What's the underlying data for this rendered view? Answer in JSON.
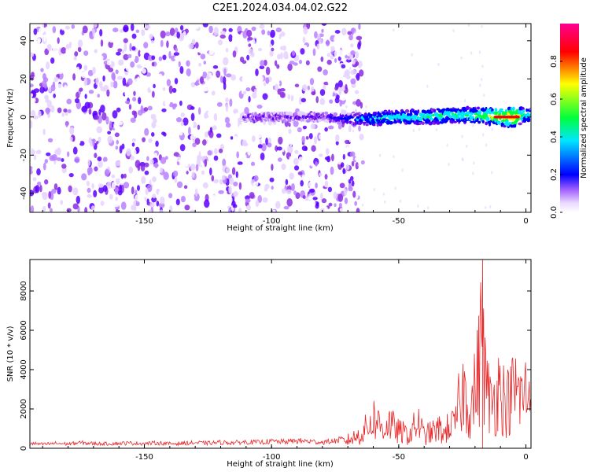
{
  "page_title": "C2E1.2024.034.04.02.G22",
  "colors": {
    "snr_line": "#e8282a",
    "colormap": [
      "#ffffff",
      "#e6d2ff",
      "#b980ff",
      "#8a2be2",
      "#5b00ff",
      "#0000ff",
      "#00e6ff",
      "#00ff3c",
      "#ffff00",
      "#ff0000",
      "#ff00aa"
    ]
  },
  "chart_data": [
    {
      "type": "heatmap",
      "xlabel": "Height of straight line (km)",
      "ylabel": "Frequency (Hz)",
      "xlim": [
        -195,
        2
      ],
      "ylim": [
        -50,
        49
      ],
      "xticks": [
        -150,
        -100,
        -50,
        0
      ],
      "xtick_labels": [
        "-150",
        "-100",
        "-50",
        "0"
      ],
      "yticks": [
        -40,
        -20,
        0,
        20,
        40
      ],
      "ytick_labels": [
        "-40",
        "-20",
        "0",
        "20",
        "40"
      ],
      "colorbar": {
        "label": "Normalized spectral amplitude",
        "range": [
          0,
          1
        ],
        "ticks": [
          0,
          0.2,
          0.4,
          0.6,
          0.8
        ],
        "tick_labels": [
          "0.0",
          "0.2",
          "0.4",
          "0.6",
          "0.8"
        ]
      },
      "description_of_features": {
        "noise_region_x": [
          -195,
          -72
        ],
        "noise_amplitude_range": [
          0.0,
          0.2
        ],
        "signal_start_x": -111,
        "signal_center_frequency": 0,
        "strong_signal_start_x": -65,
        "peak_amplitude": 1.0,
        "peak_x_range": [
          -12,
          -3
        ]
      },
      "series": [
        {
          "name": "",
          "signal_ridge": {
            "x": [
              -111,
              -100,
              -90,
              -80,
              -70,
              -60,
              -50,
              -40,
              -30,
              -20,
              -10,
              -5,
              0
            ],
            "frequency": [
              0,
              0,
              0,
              0,
              -1,
              -1,
              0,
              0,
              1,
              1,
              0,
              0,
              1
            ],
            "amplitude": [
              0.15,
              0.15,
              0.15,
              0.18,
              0.3,
              0.45,
              0.5,
              0.55,
              0.55,
              0.6,
              0.8,
              0.95,
              0.5
            ]
          }
        }
      ]
    },
    {
      "type": "line",
      "xlabel": "Height of straight line (km)",
      "ylabel": "SNR (10 * v/v)",
      "xlim": [
        -195,
        2
      ],
      "ylim": [
        0,
        9600
      ],
      "xticks": [
        -150,
        -100,
        -50,
        0
      ],
      "xtick_labels": [
        "-150",
        "-100",
        "-50",
        "0"
      ],
      "yticks": [
        0,
        2000,
        4000,
        6000,
        8000
      ],
      "ytick_labels": [
        "0",
        "2000",
        "4000",
        "6000",
        "8000"
      ],
      "series": [
        {
          "name": "",
          "x": [
            -195,
            -190,
            -185,
            -180,
            -175,
            -170,
            -165,
            -160,
            -155,
            -150,
            -145,
            -140,
            -135,
            -130,
            -125,
            -120,
            -115,
            -110,
            -105,
            -100,
            -95,
            -90,
            -85,
            -80,
            -75,
            -72,
            -70,
            -67,
            -65,
            -62,
            -60,
            -58,
            -56,
            -54,
            -52,
            -50,
            -48,
            -46,
            -44,
            -42,
            -40,
            -38,
            -36,
            -34,
            -32,
            -30,
            -28,
            -26,
            -24,
            -22,
            -20,
            -18,
            -17,
            -16,
            -14,
            -12,
            -10,
            -8,
            -6,
            -4,
            -2,
            0,
            2
          ],
          "values": [
            250,
            200,
            250,
            220,
            280,
            240,
            230,
            250,
            260,
            240,
            270,
            230,
            250,
            280,
            260,
            300,
            280,
            320,
            300,
            350,
            330,
            380,
            350,
            300,
            380,
            450,
            600,
            800,
            1000,
            1600,
            2200,
            1800,
            1400,
            1900,
            1500,
            1200,
            1100,
            900,
            1500,
            1800,
            900,
            1100,
            1200,
            1400,
            1000,
            1800,
            1500,
            3500,
            4200,
            2600,
            4200,
            6500,
            9600,
            4800,
            3200,
            3600,
            4800,
            3000,
            3800,
            4200,
            3600,
            4000,
            3900
          ]
        }
      ]
    }
  ]
}
